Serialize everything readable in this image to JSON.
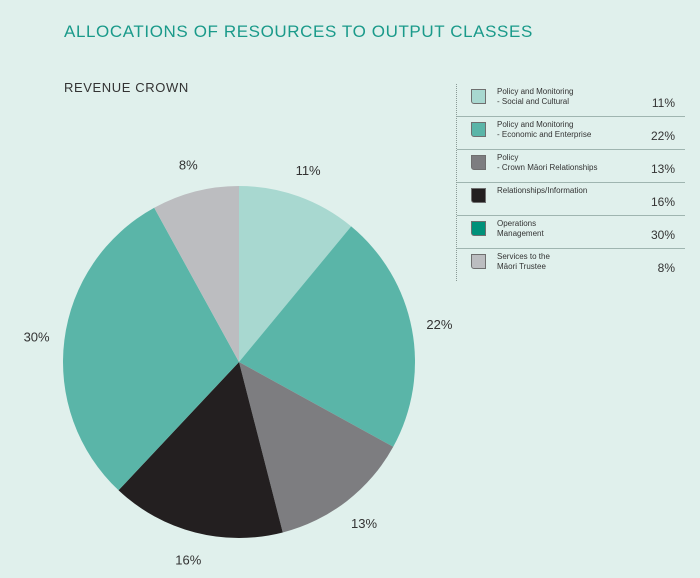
{
  "title": "ALLOCATIONS OF RESOURCES TO OUTPUT CLASSES",
  "chart_data": {
    "type": "pie",
    "title": "REVENUE CROWN",
    "slices": [
      {
        "label": "Policy and Monitoring\n- Social and Cultural",
        "value": 11,
        "value_label": "11%",
        "color": "#a8d8d0"
      },
      {
        "label": "Policy and Monitoring\n- Economic and Enterprise",
        "value": 22,
        "value_label": "22%",
        "color": "#5ab5a8"
      },
      {
        "label": "Policy\n- Crown Māori Relationships",
        "value": 13,
        "value_label": "13%",
        "color": "#7d7d80"
      },
      {
        "label": "Relationships/Information",
        "value": 16,
        "value_label": "16%",
        "color": "#231f20"
      },
      {
        "label": "Operations\nManagement",
        "value": 30,
        "value_label": "30%",
        "color": "#5ab5a8"
      },
      {
        "label": "Services to the\nMāori Trustee",
        "value": 8,
        "value_label": "8%",
        "color": "#bcbdc0"
      }
    ],
    "legend_swatch_colors": [
      "#a8d8d0",
      "#5ab5a8",
      "#7d7d80",
      "#231f20",
      "#00917a",
      "#bcbdc0"
    ],
    "legend_placement": "right"
  }
}
